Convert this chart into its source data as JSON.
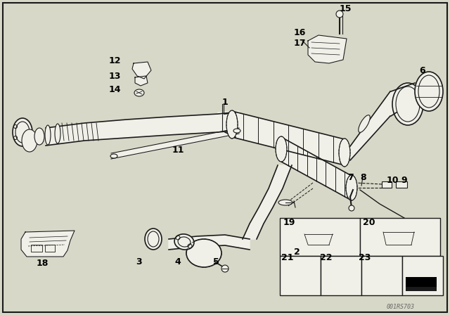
{
  "bg_color": "#d8d8c8",
  "line_color": "#1a1a1a",
  "white": "#f0f0e8",
  "watermark": "001RS703",
  "figsize": [
    6.4,
    4.48
  ],
  "dpi": 100,
  "labels": {
    "1": [
      310,
      258,
      "1"
    ],
    "2": [
      415,
      358,
      "2"
    ],
    "3": [
      193,
      368,
      "3"
    ],
    "4": [
      250,
      368,
      "4"
    ],
    "5": [
      303,
      368,
      "5"
    ],
    "6": [
      600,
      98,
      "6"
    ],
    "7": [
      498,
      252,
      "7"
    ],
    "8": [
      516,
      252,
      "8"
    ],
    "9": [
      572,
      258,
      "9"
    ],
    "10": [
      554,
      258,
      "10"
    ],
    "11": [
      248,
      210,
      "11"
    ],
    "12": [
      160,
      88,
      "12"
    ],
    "13": [
      160,
      108,
      "13"
    ],
    "14": [
      160,
      125,
      "14"
    ],
    "15": [
      484,
      20,
      "15"
    ],
    "16": [
      420,
      48,
      "16"
    ],
    "17": [
      420,
      62,
      "17"
    ],
    "18": [
      50,
      340,
      "18"
    ],
    "19": [
      402,
      322,
      "19"
    ],
    "20": [
      515,
      322,
      "20"
    ],
    "21": [
      402,
      368,
      "21"
    ],
    "22": [
      457,
      368,
      "22"
    ],
    "23": [
      511,
      368,
      "23"
    ]
  }
}
